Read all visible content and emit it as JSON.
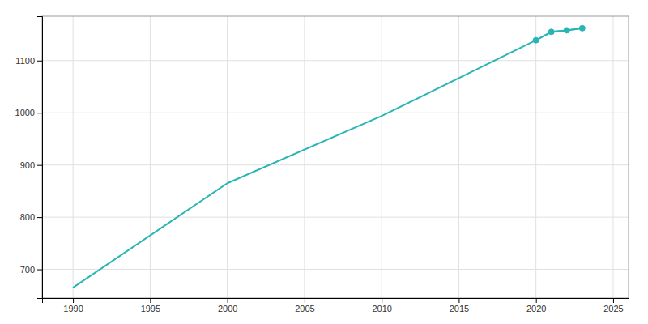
{
  "chart_data": {
    "type": "line",
    "x": [
      1990,
      2000,
      2010,
      2020,
      2021,
      2022,
      2023
    ],
    "series": [
      {
        "color": "#2ab5b5",
        "values": [
          665,
          865,
          994,
          1139,
          1155,
          1158,
          1162
        ]
      },
      {
        "color": "#2ab5b5",
        "values": [
          null,
          null,
          null,
          1139,
          1155,
          1158,
          1162
        ],
        "marker": "circle"
      }
    ],
    "xlim": [
      1988,
      2026
    ],
    "ylim": [
      645,
      1185
    ],
    "xticks": [
      1990,
      1995,
      2000,
      2005,
      2010,
      2015,
      2020,
      2025
    ],
    "yticks": [
      700,
      800,
      900,
      1000,
      1100
    ],
    "grid": true
  }
}
